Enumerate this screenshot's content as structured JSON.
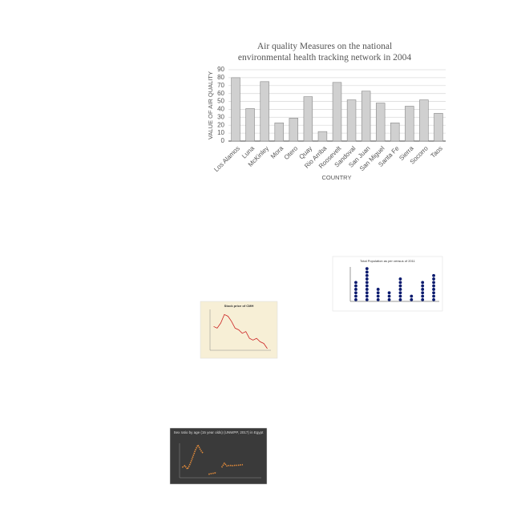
{
  "chart_data": [
    {
      "type": "bar",
      "title": "Air quality Measures on the national environmental health tracking network in 2004",
      "x_label": "COUNTRY",
      "y_label": "VALUE OF AIR QUALITY",
      "categories": [
        "Los Alamos",
        "Luna",
        "McKinley",
        "Mora",
        "Otero",
        "Quay",
        "Rio Arriba",
        "Roosevelt",
        "Sandoval",
        "San Juan",
        "San Miguel",
        "Santa Fe",
        "Sierra",
        "Socorro",
        "Taos"
      ],
      "values": [
        80,
        41,
        75,
        23,
        29,
        56,
        12,
        74,
        52,
        63,
        48,
        23,
        44,
        52,
        35
      ],
      "color": "#d0d0d0",
      "ylim": [
        0,
        90
      ],
      "yticks": [
        0,
        10,
        20,
        30,
        40,
        50,
        60,
        70,
        80,
        90
      ],
      "grid": true
    },
    {
      "type": "dot",
      "title": "Total Population as per census of 2011",
      "values": [
        6,
        10,
        4,
        3,
        7,
        2,
        6,
        8
      ],
      "color": "#0a1a6e",
      "ylim": [
        0,
        10
      ]
    },
    {
      "type": "line",
      "title": "Stock price of CMH",
      "x": [
        1,
        2,
        3,
        4,
        5,
        6,
        7,
        8,
        9,
        10,
        11,
        12,
        13,
        14,
        15,
        16
      ],
      "values": [
        7,
        6.5,
        8,
        10.5,
        10,
        8.5,
        6.5,
        6,
        5,
        5.5,
        3.5,
        3,
        3.5,
        2.5,
        2,
        0.5
      ],
      "color": "#cc2222",
      "xlim": [
        0,
        17
      ],
      "ylim": [
        0,
        12
      ]
    },
    {
      "type": "line",
      "title": "Sex ratio by age (15 year olds) (UNWPP, 2017) in Egypt",
      "x": [
        1,
        2,
        3,
        4,
        5,
        6,
        7,
        8,
        9,
        10,
        11,
        12,
        13,
        14,
        15,
        16,
        17,
        18,
        19,
        20,
        21,
        22,
        23,
        24,
        25,
        26,
        27,
        28,
        29,
        30
      ],
      "values": [
        3,
        3.5,
        2.5,
        4,
        6,
        8,
        9.5,
        8,
        7,
        null,
        1,
        1.2,
        1.3,
        1.5,
        null,
        3,
        4.2,
        3.4,
        3.6,
        3.5,
        3.6,
        3.6,
        3.7,
        3.8,
        null,
        null,
        null,
        null,
        null,
        null
      ],
      "color": "#e08a3a",
      "xlim": [
        0,
        31
      ],
      "ylim": [
        0,
        10
      ],
      "dashed": true
    }
  ]
}
